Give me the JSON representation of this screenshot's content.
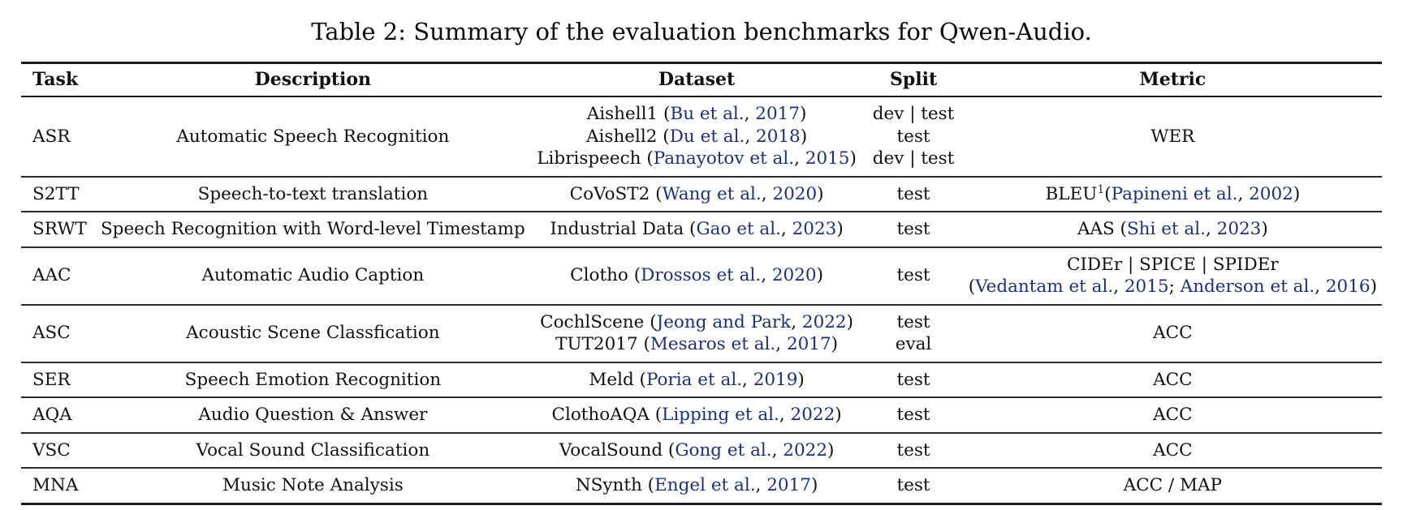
{
  "page": {
    "title": "Table 2: Summary of the evaluation benchmarks for Qwen-Audio."
  },
  "colors": {
    "text": "#111111",
    "citation": "#1c2f80",
    "rule": "#1b1b1b"
  },
  "table": {
    "headers": [
      "Task",
      "Description",
      "Dataset",
      "Split",
      "Metric"
    ],
    "rows": [
      {
        "task": [
          [
            {
              "t": "ASR"
            }
          ]
        ],
        "description": [
          [
            {
              "t": "Automatic Speech Recognition"
            }
          ]
        ],
        "dataset": [
          [
            {
              "t": "Aishell1 ("
            },
            {
              "t": "Bu et al.",
              "c": 1
            },
            {
              "t": ", "
            },
            {
              "t": "2017",
              "c": 1
            },
            {
              "t": ")"
            }
          ],
          [
            {
              "t": "Aishell2 ("
            },
            {
              "t": "Du et al.",
              "c": 1
            },
            {
              "t": ", "
            },
            {
              "t": "2018",
              "c": 1
            },
            {
              "t": ")"
            }
          ],
          [
            {
              "t": "Librispeech ("
            },
            {
              "t": "Panayotov et al.",
              "c": 1
            },
            {
              "t": ", "
            },
            {
              "t": "2015",
              "c": 1
            },
            {
              "t": ")"
            }
          ]
        ],
        "split": [
          [
            {
              "t": "dev | test"
            }
          ],
          [
            {
              "t": "test"
            }
          ],
          [
            {
              "t": "dev | test"
            }
          ]
        ],
        "metric": [
          [
            {
              "t": "WER"
            }
          ]
        ]
      },
      {
        "task": [
          [
            {
              "t": "S2TT"
            }
          ]
        ],
        "description": [
          [
            {
              "t": "Speech-to-text translation"
            }
          ]
        ],
        "dataset": [
          [
            {
              "t": "CoVoST2 ("
            },
            {
              "t": "Wang et al.",
              "c": 1
            },
            {
              "t": ", "
            },
            {
              "t": "2020",
              "c": 1
            },
            {
              "t": ")"
            }
          ]
        ],
        "split": [
          [
            {
              "t": "test"
            }
          ]
        ],
        "metric": [
          [
            {
              "t": "BLEU"
            },
            {
              "t": "1",
              "c": 1,
              "s": 1
            },
            {
              "t": "("
            },
            {
              "t": "Papineni et al.",
              "c": 1
            },
            {
              "t": ", "
            },
            {
              "t": "2002",
              "c": 1
            },
            {
              "t": ")"
            }
          ]
        ]
      },
      {
        "task": [
          [
            {
              "t": "SRWT"
            }
          ]
        ],
        "description": [
          [
            {
              "t": "Speech Recognition with Word-level Timestamp"
            }
          ]
        ],
        "dataset": [
          [
            {
              "t": "Industrial Data ("
            },
            {
              "t": "Gao et al.",
              "c": 1
            },
            {
              "t": ", "
            },
            {
              "t": "2023",
              "c": 1
            },
            {
              "t": ")"
            }
          ]
        ],
        "split": [
          [
            {
              "t": "test"
            }
          ]
        ],
        "metric": [
          [
            {
              "t": "AAS ("
            },
            {
              "t": "Shi et al.",
              "c": 1
            },
            {
              "t": ", "
            },
            {
              "t": "2023",
              "c": 1
            },
            {
              "t": ")"
            }
          ]
        ]
      },
      {
        "task": [
          [
            {
              "t": "AAC"
            }
          ]
        ],
        "description": [
          [
            {
              "t": "Automatic Audio Caption"
            }
          ]
        ],
        "dataset": [
          [
            {
              "t": "Clotho ("
            },
            {
              "t": "Drossos et al.",
              "c": 1
            },
            {
              "t": ", "
            },
            {
              "t": "2020",
              "c": 1
            },
            {
              "t": ")"
            }
          ]
        ],
        "split": [
          [
            {
              "t": "test"
            }
          ]
        ],
        "metric": [
          [
            {
              "t": "CIDEr | SPICE | SPIDEr"
            }
          ],
          [
            {
              "t": "("
            },
            {
              "t": "Vedantam et al.",
              "c": 1
            },
            {
              "t": ", "
            },
            {
              "t": "2015",
              "c": 1
            },
            {
              "t": "; "
            },
            {
              "t": "Anderson et al.",
              "c": 1
            },
            {
              "t": ", "
            },
            {
              "t": "2016",
              "c": 1
            },
            {
              "t": ")"
            }
          ]
        ]
      },
      {
        "task": [
          [
            {
              "t": "ASC"
            }
          ]
        ],
        "description": [
          [
            {
              "t": "Acoustic Scene Classfication"
            }
          ]
        ],
        "dataset": [
          [
            {
              "t": "CochlScene ("
            },
            {
              "t": "Jeong and Park",
              "c": 1
            },
            {
              "t": ", "
            },
            {
              "t": "2022",
              "c": 1
            },
            {
              "t": ")"
            }
          ],
          [
            {
              "t": "TUT2017 ("
            },
            {
              "t": "Mesaros et al.",
              "c": 1
            },
            {
              "t": ", "
            },
            {
              "t": "2017",
              "c": 1
            },
            {
              "t": ")"
            }
          ]
        ],
        "split": [
          [
            {
              "t": "test"
            }
          ],
          [
            {
              "t": "eval"
            }
          ]
        ],
        "metric": [
          [
            {
              "t": "ACC"
            }
          ]
        ]
      },
      {
        "task": [
          [
            {
              "t": "SER"
            }
          ]
        ],
        "description": [
          [
            {
              "t": "Speech Emotion Recognition"
            }
          ]
        ],
        "dataset": [
          [
            {
              "t": "Meld ("
            },
            {
              "t": "Poria et al.",
              "c": 1
            },
            {
              "t": ", "
            },
            {
              "t": "2019",
              "c": 1
            },
            {
              "t": ")"
            }
          ]
        ],
        "split": [
          [
            {
              "t": "test"
            }
          ]
        ],
        "metric": [
          [
            {
              "t": "ACC"
            }
          ]
        ]
      },
      {
        "task": [
          [
            {
              "t": "AQA"
            }
          ]
        ],
        "description": [
          [
            {
              "t": "Audio Question & Answer"
            }
          ]
        ],
        "dataset": [
          [
            {
              "t": "ClothoAQA ("
            },
            {
              "t": "Lipping et al.",
              "c": 1
            },
            {
              "t": ", "
            },
            {
              "t": "2022",
              "c": 1
            },
            {
              "t": ")"
            }
          ]
        ],
        "split": [
          [
            {
              "t": "test"
            }
          ]
        ],
        "metric": [
          [
            {
              "t": "ACC"
            }
          ]
        ]
      },
      {
        "task": [
          [
            {
              "t": "VSC"
            }
          ]
        ],
        "description": [
          [
            {
              "t": "Vocal Sound Classification"
            }
          ]
        ],
        "dataset": [
          [
            {
              "t": "VocalSound ("
            },
            {
              "t": "Gong et al.",
              "c": 1
            },
            {
              "t": ", "
            },
            {
              "t": "2022",
              "c": 1
            },
            {
              "t": ")"
            }
          ]
        ],
        "split": [
          [
            {
              "t": "test"
            }
          ]
        ],
        "metric": [
          [
            {
              "t": "ACC"
            }
          ]
        ]
      },
      {
        "task": [
          [
            {
              "t": "MNA"
            }
          ]
        ],
        "description": [
          [
            {
              "t": "Music Note Analysis"
            }
          ]
        ],
        "dataset": [
          [
            {
              "t": "NSynth ("
            },
            {
              "t": "Engel et al.",
              "c": 1
            },
            {
              "t": ", "
            },
            {
              "t": "2017",
              "c": 1
            },
            {
              "t": ")"
            }
          ]
        ],
        "split": [
          [
            {
              "t": "test"
            }
          ]
        ],
        "metric": [
          [
            {
              "t": "ACC / MAP"
            }
          ]
        ]
      }
    ]
  }
}
